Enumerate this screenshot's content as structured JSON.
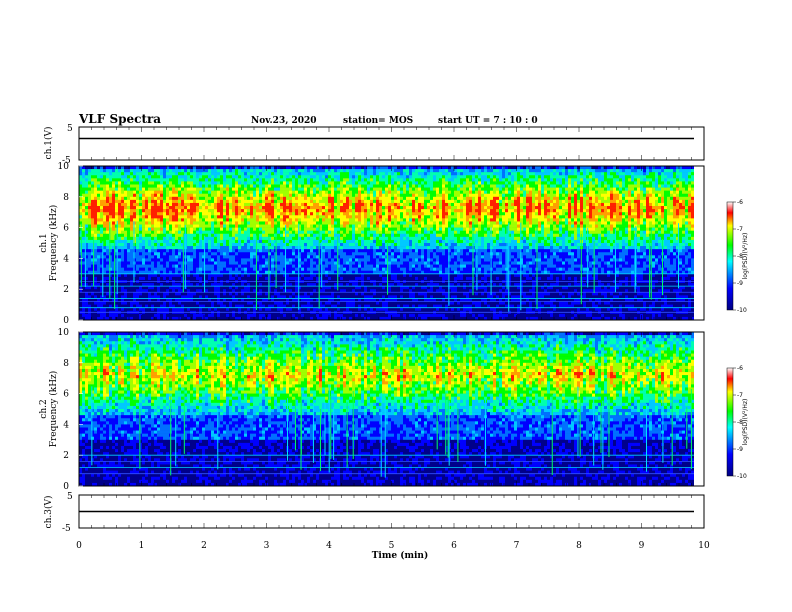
{
  "header": {
    "title": "VLF Spectra",
    "date": "Nov.23, 2020",
    "station": "station= MOS",
    "start": "start  UT =   7 : 10 : 0"
  },
  "colors": {
    "low": "#000000",
    "mid_low": "#0000ff",
    "mid": "#00ff00",
    "mid_high": "#ffff00",
    "high": "#ff0000"
  },
  "chart_data": [
    {
      "type": "line",
      "id": "ch1-waveform",
      "ylabel": "ch.1(V)",
      "ylim": [
        -5,
        5
      ],
      "yticks": [
        "5",
        "-5"
      ],
      "values_approx": 1.5
    },
    {
      "type": "heatmap",
      "id": "ch1-spectrogram",
      "ylabel_line1": "ch.1",
      "ylabel_line2": "Frequency  (kHz)",
      "ylim": [
        0,
        10
      ],
      "yticks": [
        "0",
        "2",
        "4",
        "6",
        "8",
        "10"
      ],
      "xlim": [
        0,
        10
      ],
      "colorbar": {
        "label": "log(PSD)(V²/Hz)",
        "range": [
          -10,
          -6
        ],
        "ticks": [
          "-6",
          "-7",
          "-8",
          "-9",
          "-10"
        ]
      }
    },
    {
      "type": "heatmap",
      "id": "ch2-spectrogram",
      "ylabel_line1": "ch.2",
      "ylabel_line2": "Frequency  (kHz)",
      "ylim": [
        0,
        10
      ],
      "yticks": [
        "0",
        "2",
        "4",
        "6",
        "8",
        "10"
      ],
      "xlim": [
        0,
        10
      ],
      "colorbar": {
        "label": "log(PSD)(V²/Hz)",
        "range": [
          -10,
          -6
        ],
        "ticks": [
          "-6",
          "-7",
          "-8",
          "-9",
          "-10"
        ]
      }
    },
    {
      "type": "line",
      "id": "ch3-waveform",
      "ylabel": "ch.3(V)",
      "ylim": [
        -5,
        5
      ],
      "yticks": [
        "5",
        "-5"
      ],
      "values_approx": 0.0,
      "xlabel": "Time  (min)",
      "xlim": [
        0,
        10
      ],
      "xticks": [
        "0",
        "1",
        "2",
        "3",
        "4",
        "5",
        "6",
        "7",
        "8",
        "9",
        "10"
      ]
    }
  ]
}
